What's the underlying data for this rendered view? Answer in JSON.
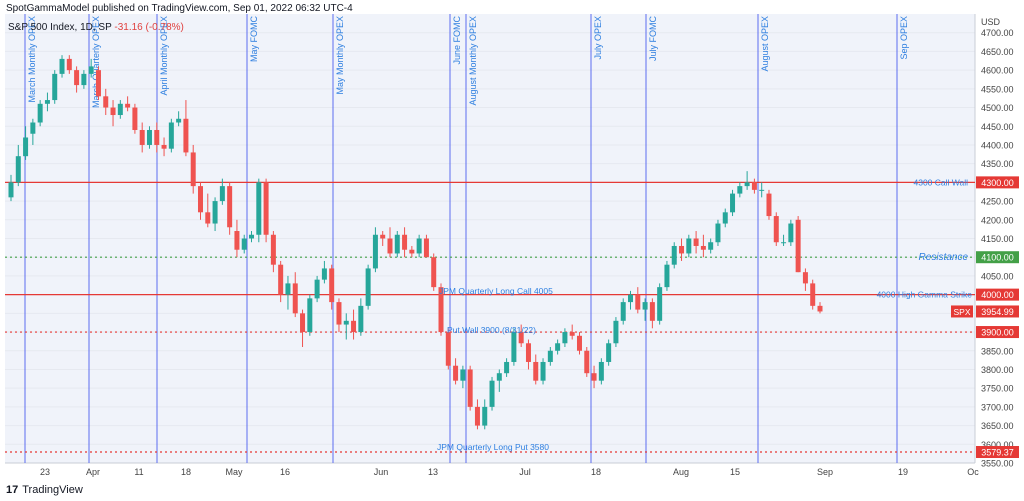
{
  "header": {
    "published_line": "SpotGammaModel published on TradingView.com, Sep 01, 2022 06:32 UTC-4",
    "symbol_line": "S&P 500 Index, 1D, SP",
    "change_text": "-31.16 (-0.78%)"
  },
  "footer": {
    "brand": "TradingView",
    "logo_glyph": "17"
  },
  "colors": {
    "up": "#26a69a",
    "down": "#ef5350",
    "vline": "#5b6cf0",
    "hline": "#e53935",
    "green_dot": "#43a047",
    "blue_text": "#2e7fe0",
    "bg": "#f0f3fa"
  },
  "chart_data": {
    "type": "candlestick",
    "currency_label": "USD",
    "ylim": [
      3550,
      4750
    ],
    "y_ticks": [
      3550,
      3600,
      3650,
      3700,
      3750,
      3800,
      3850,
      3900,
      3950,
      4000,
      4050,
      4100,
      4150,
      4200,
      4250,
      4300,
      4350,
      4400,
      4450,
      4500,
      4550,
      4600,
      4650,
      4700
    ],
    "x_ticks": [
      "23",
      "Apr",
      "11",
      "18",
      "May",
      "16",
      "Jun",
      "13",
      "Jul",
      "18",
      "Aug",
      "15",
      "Sep",
      "19",
      "Oc"
    ],
    "series": [
      {
        "name": "SPX",
        "ohlc": [
          [
            4260,
            4320,
            4250,
            4300
          ],
          [
            4300,
            4400,
            4290,
            4370
          ],
          [
            4370,
            4450,
            4360,
            4420
          ],
          [
            4430,
            4470,
            4400,
            4460
          ],
          [
            4460,
            4520,
            4450,
            4510
          ],
          [
            4510,
            4540,
            4490,
            4520
          ],
          [
            4520,
            4600,
            4510,
            4590
          ],
          [
            4590,
            4640,
            4580,
            4630
          ],
          [
            4630,
            4640,
            4590,
            4600
          ],
          [
            4600,
            4610,
            4540,
            4560
          ],
          [
            4560,
            4600,
            4550,
            4590
          ],
          [
            4590,
            4630,
            4580,
            4610
          ],
          [
            4600,
            4610,
            4520,
            4530
          ],
          [
            4530,
            4550,
            4480,
            4500
          ],
          [
            4500,
            4520,
            4450,
            4480
          ],
          [
            4480,
            4520,
            4470,
            4510
          ],
          [
            4510,
            4530,
            4490,
            4500
          ],
          [
            4500,
            4510,
            4430,
            4440
          ],
          [
            4440,
            4460,
            4380,
            4400
          ],
          [
            4400,
            4450,
            4390,
            4440
          ],
          [
            4440,
            4460,
            4380,
            4400
          ],
          [
            4400,
            4420,
            4370,
            4390
          ],
          [
            4390,
            4470,
            4380,
            4460
          ],
          [
            4460,
            4490,
            4450,
            4470
          ],
          [
            4470,
            4520,
            4370,
            4380
          ],
          [
            4380,
            4400,
            4270,
            4290
          ],
          [
            4290,
            4300,
            4200,
            4220
          ],
          [
            4220,
            4270,
            4180,
            4190
          ],
          [
            4190,
            4260,
            4170,
            4250
          ],
          [
            4250,
            4310,
            4240,
            4290
          ],
          [
            4290,
            4300,
            4160,
            4180
          ],
          [
            4170,
            4200,
            4100,
            4120
          ],
          [
            4120,
            4160,
            4110,
            4150
          ],
          [
            4150,
            4170,
            4140,
            4160
          ],
          [
            4160,
            4310,
            4140,
            4300
          ],
          [
            4300,
            4310,
            4140,
            4160
          ],
          [
            4160,
            4170,
            4060,
            4080
          ],
          [
            4080,
            4090,
            3980,
            4000
          ],
          [
            4000,
            4050,
            3960,
            4030
          ],
          [
            4030,
            4060,
            3940,
            3950
          ],
          [
            3950,
            3960,
            3860,
            3900
          ],
          [
            3900,
            4000,
            3890,
            3990
          ],
          [
            3990,
            4050,
            3980,
            4040
          ],
          [
            4040,
            4090,
            4030,
            4070
          ],
          [
            4070,
            4080,
            3960,
            3980
          ],
          [
            3980,
            3990,
            3900,
            3920
          ],
          [
            3920,
            3950,
            3880,
            3930
          ],
          [
            3930,
            3960,
            3880,
            3900
          ],
          [
            3900,
            3990,
            3890,
            3970
          ],
          [
            3970,
            4080,
            3960,
            4070
          ],
          [
            4070,
            4180,
            4060,
            4160
          ],
          [
            4160,
            4170,
            4130,
            4150
          ],
          [
            4150,
            4180,
            4100,
            4110
          ],
          [
            4110,
            4170,
            4100,
            4160
          ],
          [
            4160,
            4180,
            4100,
            4120
          ],
          [
            4120,
            4130,
            4100,
            4110
          ],
          [
            4110,
            4160,
            4100,
            4150
          ],
          [
            4150,
            4160,
            4100,
            4100
          ],
          [
            4100,
            4110,
            4010,
            4020
          ],
          [
            4020,
            4030,
            3890,
            3900
          ],
          [
            3900,
            3910,
            3800,
            3810
          ],
          [
            3810,
            3830,
            3760,
            3770
          ],
          [
            3770,
            3810,
            3750,
            3800
          ],
          [
            3800,
            3810,
            3690,
            3700
          ],
          [
            3700,
            3720,
            3640,
            3650
          ],
          [
            3650,
            3720,
            3640,
            3700
          ],
          [
            3700,
            3780,
            3690,
            3770
          ],
          [
            3770,
            3800,
            3740,
            3790
          ],
          [
            3790,
            3830,
            3780,
            3820
          ],
          [
            3820,
            3910,
            3810,
            3900
          ],
          [
            3900,
            3920,
            3860,
            3870
          ],
          [
            3870,
            3880,
            3800,
            3820
          ],
          [
            3820,
            3840,
            3760,
            3770
          ],
          [
            3770,
            3830,
            3760,
            3820
          ],
          [
            3820,
            3860,
            3810,
            3850
          ],
          [
            3850,
            3880,
            3840,
            3870
          ],
          [
            3870,
            3910,
            3860,
            3900
          ],
          [
            3900,
            3920,
            3880,
            3890
          ],
          [
            3890,
            3900,
            3840,
            3850
          ],
          [
            3850,
            3860,
            3780,
            3790
          ],
          [
            3790,
            3810,
            3750,
            3770
          ],
          [
            3770,
            3830,
            3760,
            3820
          ],
          [
            3820,
            3880,
            3810,
            3870
          ],
          [
            3870,
            3940,
            3860,
            3930
          ],
          [
            3930,
            3990,
            3920,
            3980
          ],
          [
            3980,
            4010,
            3960,
            4000
          ],
          [
            4000,
            4020,
            3950,
            3960
          ],
          [
            3960,
            3990,
            3930,
            3980
          ],
          [
            3980,
            3990,
            3910,
            3930
          ],
          [
            3930,
            4030,
            3920,
            4020
          ],
          [
            4020,
            4090,
            4010,
            4080
          ],
          [
            4080,
            4140,
            4070,
            4130
          ],
          [
            4130,
            4150,
            4090,
            4110
          ],
          [
            4110,
            4160,
            4100,
            4150
          ],
          [
            4150,
            4170,
            4110,
            4130
          ],
          [
            4130,
            4160,
            4100,
            4120
          ],
          [
            4120,
            4150,
            4110,
            4140
          ],
          [
            4140,
            4200,
            4130,
            4190
          ],
          [
            4190,
            4230,
            4180,
            4220
          ],
          [
            4220,
            4280,
            4210,
            4270
          ],
          [
            4270,
            4300,
            4260,
            4290
          ],
          [
            4290,
            4330,
            4280,
            4300
          ],
          [
            4300,
            4310,
            4270,
            4280
          ],
          [
            4280,
            4300,
            4260,
            4280
          ],
          [
            4270,
            4280,
            4200,
            4210
          ],
          [
            4210,
            4220,
            4130,
            4140
          ],
          [
            4140,
            4160,
            4130,
            4140
          ],
          [
            4140,
            4200,
            4130,
            4190
          ],
          [
            4200,
            4210,
            4060,
            4060
          ],
          [
            4060,
            4070,
            4010,
            4030
          ],
          [
            4030,
            4040,
            3960,
            3970
          ],
          [
            3970,
            3980,
            3950,
            3955
          ]
        ]
      }
    ],
    "horizontal_levels": [
      {
        "value": 4300,
        "style": "solid",
        "label": "4300 Call Wall",
        "badge": "4300.00"
      },
      {
        "value": 4100,
        "style": "dotted",
        "label": "Resistance",
        "badge": "4100.00"
      },
      {
        "value": 4000,
        "style": "solid",
        "label": "4000 High Gamma Strike",
        "badge": "4000.00"
      },
      {
        "value": 3900,
        "style": "dotted",
        "label": "",
        "badge": "3900.00"
      },
      {
        "value": 3579.37,
        "style": "dotted",
        "label": "",
        "badge": "3579.37"
      }
    ],
    "last_price": {
      "label": "SPX",
      "value": "3954.99"
    },
    "annotations": [
      {
        "text": "JPM Quarterly Long Call 4005",
        "price": 4010
      },
      {
        "text": "Put Wall 3900 (8/31/22)",
        "price": 3905
      },
      {
        "text": "JPM Quarterly Long Put 3580",
        "price": 3593
      }
    ],
    "events": [
      {
        "label": "March Monthly OPEX"
      },
      {
        "label": "March Quarterly OPEX"
      },
      {
        "label": "April Monthly OPEX"
      },
      {
        "label": "May FOMC"
      },
      {
        "label": "May Monthly OPEX"
      },
      {
        "label": "June FOMC"
      },
      {
        "label": "August Monthly OPEX"
      },
      {
        "label": "July OPEX"
      },
      {
        "label": "July FOMC"
      },
      {
        "label": "August OPEX"
      },
      {
        "label": "Sep OPEX"
      }
    ]
  }
}
